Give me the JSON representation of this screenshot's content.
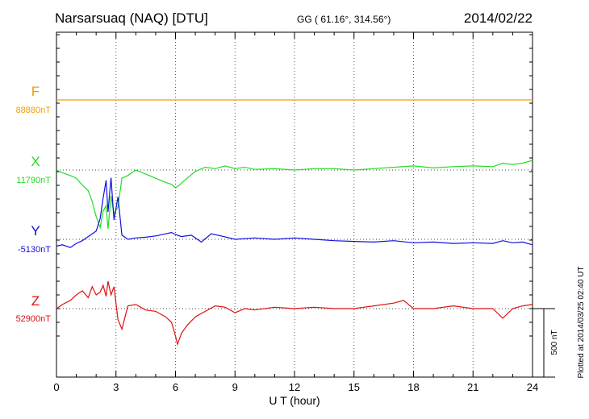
{
  "chart_data": {
    "type": "line",
    "title": "Narsarsuaq (NAQ)  [DTU]",
    "coords": "GG ( 61.16°, 314.56°)",
    "date": "2014/02/22",
    "xlabel": "U T (hour)",
    "xlim": [
      0,
      24
    ],
    "xticks": [
      0,
      3,
      6,
      9,
      12,
      15,
      18,
      21,
      24
    ],
    "xtick_labels": [
      "0",
      "3",
      "6",
      "9",
      "12",
      "15",
      "18",
      "21",
      "24"
    ],
    "scale_bar_label": "500 nT",
    "plotted_note": "Plotted at 2014/03/25 02:40 UT",
    "grid": true,
    "series": [
      {
        "name": "F",
        "baseline_label": "88880nT",
        "color": "#f0a000",
        "x": [
          0,
          24
        ],
        "values": [
          0,
          0
        ]
      },
      {
        "name": "X",
        "baseline_label": "11790nT",
        "color": "#22dd22",
        "x": [
          0,
          0.3,
          0.7,
          1.0,
          1.3,
          1.6,
          1.8,
          2.0,
          2.2,
          2.35,
          2.5,
          2.6,
          2.75,
          2.9,
          3.1,
          3.3,
          3.6,
          4.0,
          4.5,
          5.0,
          5.5,
          5.8,
          6.0,
          6.2,
          6.5,
          7.0,
          7.5,
          8.0,
          8.5,
          9.0,
          9.5,
          10.0,
          11.0,
          12.0,
          13.0,
          14.0,
          15.0,
          16.0,
          17.0,
          18.0,
          19.0,
          20.0,
          21.0,
          22.0,
          22.5,
          23.0,
          23.5,
          24.0
        ],
        "values": [
          0,
          -20,
          -40,
          -60,
          -110,
          -150,
          -230,
          -340,
          -420,
          -300,
          -260,
          -430,
          -190,
          -320,
          -270,
          -60,
          -40,
          0,
          -30,
          -60,
          -90,
          -105,
          -130,
          -110,
          -70,
          -10,
          20,
          10,
          30,
          10,
          20,
          5,
          10,
          0,
          10,
          10,
          0,
          10,
          20,
          30,
          15,
          25,
          30,
          25,
          50,
          40,
          50,
          70
        ]
      },
      {
        "name": "Y",
        "baseline_label": "-5130nT",
        "color": "#1010dd",
        "x": [
          0,
          0.3,
          0.7,
          1.0,
          1.3,
          1.6,
          1.8,
          2.0,
          2.2,
          2.35,
          2.5,
          2.6,
          2.75,
          2.9,
          3.1,
          3.3,
          3.6,
          4.0,
          4.5,
          5.0,
          5.5,
          5.8,
          6.0,
          6.3,
          6.8,
          7.3,
          7.8,
          8.3,
          9.0,
          10.0,
          11.0,
          12.0,
          13.0,
          14.0,
          15.0,
          16.0,
          17.0,
          18.0,
          19.0,
          20.0,
          21.0,
          22.0,
          22.5,
          23.0,
          23.5,
          24.0
        ],
        "values": [
          -50,
          -40,
          -60,
          -30,
          -10,
          20,
          40,
          60,
          150,
          300,
          430,
          200,
          450,
          140,
          310,
          30,
          0,
          10,
          15,
          25,
          40,
          50,
          35,
          20,
          30,
          -20,
          40,
          25,
          0,
          10,
          0,
          10,
          0,
          -10,
          -15,
          -20,
          -10,
          -25,
          -20,
          -30,
          -25,
          -30,
          -10,
          -25,
          -20,
          -40
        ]
      },
      {
        "name": "Z",
        "baseline_label": "52900nT",
        "color": "#dd1010",
        "x": [
          0,
          0.3,
          0.7,
          1.0,
          1.3,
          1.6,
          1.8,
          2.0,
          2.2,
          2.35,
          2.5,
          2.6,
          2.75,
          2.9,
          3.1,
          3.3,
          3.6,
          4.0,
          4.5,
          5.0,
          5.5,
          5.8,
          6.0,
          6.1,
          6.3,
          6.6,
          7.0,
          7.5,
          8.0,
          8.5,
          9.0,
          9.5,
          10.0,
          11.0,
          12.0,
          13.0,
          14.0,
          15.0,
          16.0,
          17.0,
          17.5,
          18.0,
          19.0,
          20.0,
          21.0,
          22.0,
          22.5,
          23.0,
          23.5,
          24.0
        ],
        "values": [
          0,
          30,
          60,
          100,
          130,
          80,
          160,
          100,
          120,
          170,
          90,
          200,
          100,
          160,
          -80,
          -150,
          20,
          30,
          -10,
          -20,
          -60,
          -100,
          -200,
          -260,
          -180,
          -120,
          -60,
          -20,
          20,
          10,
          -30,
          0,
          -10,
          10,
          0,
          10,
          0,
          0,
          20,
          40,
          60,
          0,
          0,
          20,
          0,
          0,
          -70,
          0,
          20,
          30
        ]
      }
    ]
  }
}
